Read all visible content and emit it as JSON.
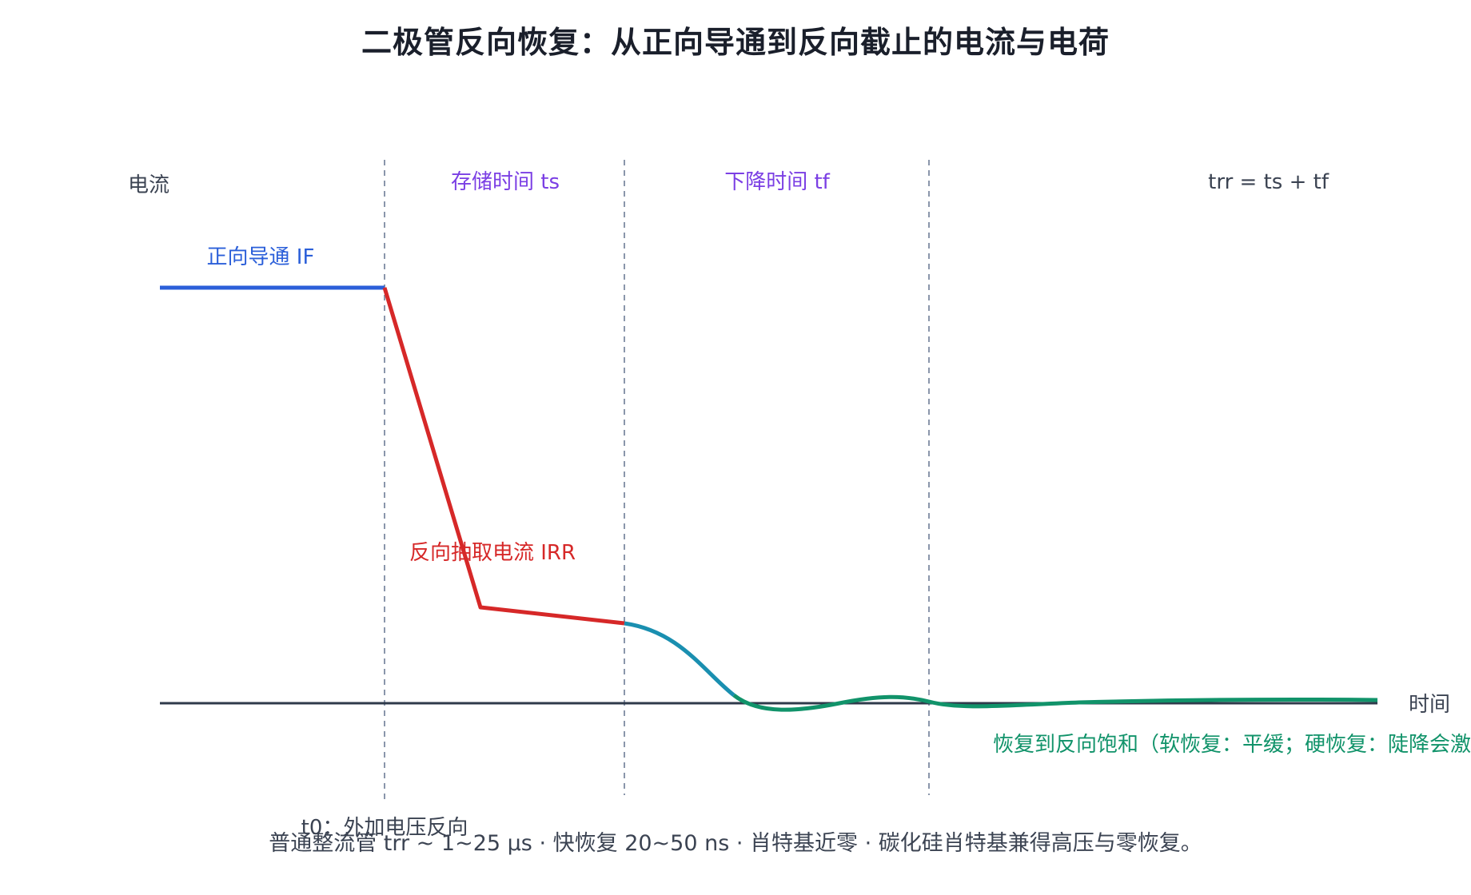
{
  "title": "二极管反向恢复：从正向导通到反向截止的电流与电荷",
  "axes": {
    "y_label": "电流",
    "x_label": "时间"
  },
  "phases": {
    "ts_label": "存储时间 ts",
    "tf_label": "下降时间 tf",
    "trr_label": "trr = ts + tf"
  },
  "annotations": {
    "forward": "正向导通 IF",
    "reverse": "反向抽取电流 IRR",
    "recovery": "恢复到反向饱和（软恢复：平缓；硬恢复：陡降会激",
    "t0": "t0：外加电压反向"
  },
  "caption": "普通整流管 trr ~ 1~25 μs · 快恢复 20~50 ns · 肖特基近零 · 碳化硅肖特基兼得高压与零恢复。",
  "colors": {
    "forward": "#2b5fd9",
    "reverse": "#d62828",
    "fall": "#1a8fb0",
    "recovery": "#11936a",
    "phase_text": "#7b3fe4",
    "axis": "#2f3a4b",
    "guide": "#8a96ab"
  }
}
